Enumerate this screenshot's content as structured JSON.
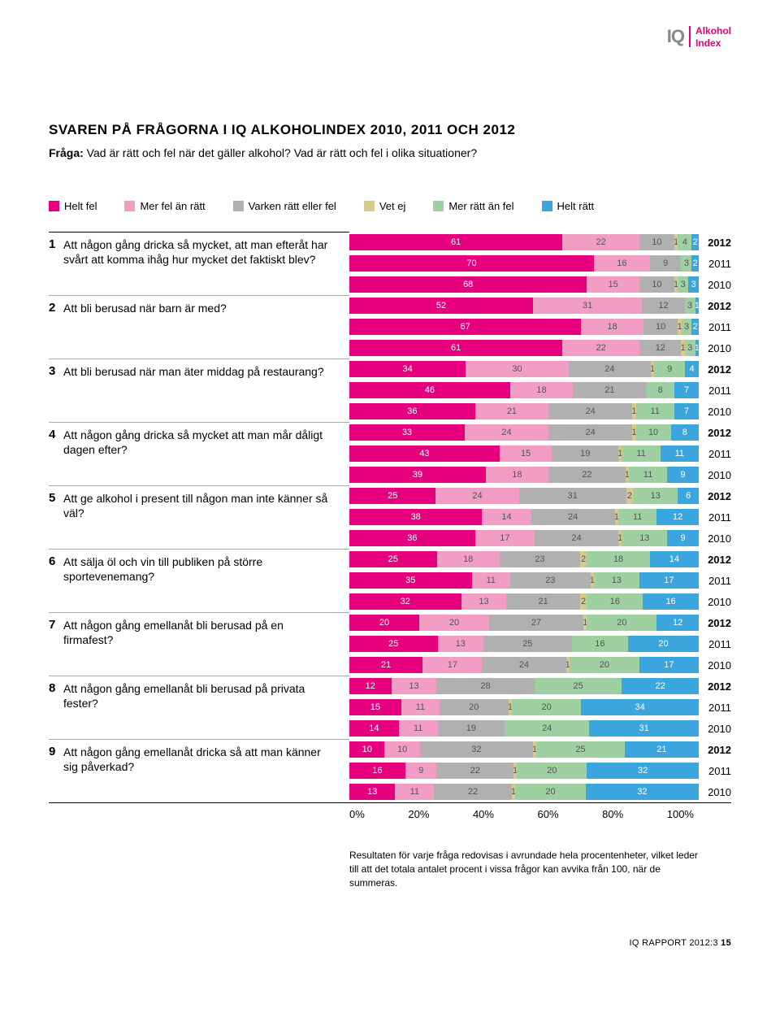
{
  "brand": {
    "iq": "IQ",
    "line1": "Alkohol",
    "line2": "Index",
    "accent": "#e6007e"
  },
  "title": "SVAREN PÅ FRÅGORNA I IQ ALKOHOLINDEX 2010, 2011 OCH 2012",
  "subtitle_bold": "Fråga:",
  "subtitle": " Vad är rätt och fel när det gäller alkohol? Vad är rätt och fel i olika situationer?",
  "legend": [
    {
      "label": "Helt fel",
      "color": "#e6007e"
    },
    {
      "label": "Mer fel än rätt",
      "color": "#f29ec4"
    },
    {
      "label": "Varken rätt eller fel",
      "color": "#b0b0b0"
    },
    {
      "label": "Vet ej",
      "color": "#d8c98f"
    },
    {
      "label": "Mer rätt än fel",
      "color": "#9ed0a1"
    },
    {
      "label": "Helt rätt",
      "color": "#3aa6dd"
    }
  ],
  "colors": [
    "#e6007e",
    "#f29ec4",
    "#b0b0b0",
    "#d8c98f",
    "#9ed0a1",
    "#3aa6dd"
  ],
  "darkTextFor": [
    "#f29ec4",
    "#b0b0b0",
    "#d8c98f",
    "#9ed0a1"
  ],
  "questions": [
    {
      "n": "1",
      "text": "Att någon gång dricka så mycket, att man efteråt har svårt att komma ihåg hur mycket det faktiskt blev?",
      "years": [
        {
          "y": "2012",
          "v": [
            61,
            22,
            10,
            1,
            4,
            2
          ]
        },
        {
          "y": "2011",
          "v": [
            70,
            16,
            9,
            0,
            3,
            2
          ]
        },
        {
          "y": "2010",
          "v": [
            68,
            15,
            10,
            1,
            3,
            3
          ]
        }
      ]
    },
    {
      "n": "2",
      "text": "Att bli berusad när barn är med?",
      "years": [
        {
          "y": "2012",
          "v": [
            52,
            31,
            12,
            0,
            3,
            1
          ]
        },
        {
          "y": "2011",
          "v": [
            67,
            18,
            10,
            1,
            3,
            2
          ]
        },
        {
          "y": "2010",
          "v": [
            61,
            22,
            12,
            1,
            3,
            1
          ]
        }
      ]
    },
    {
      "n": "3",
      "text": "Att bli berusad när man äter middag på restaurang?",
      "years": [
        {
          "y": "2012",
          "v": [
            34,
            30,
            24,
            1,
            9,
            4
          ]
        },
        {
          "y": "2011",
          "v": [
            46,
            18,
            21,
            0,
            8,
            7
          ]
        },
        {
          "y": "2010",
          "v": [
            36,
            21,
            24,
            1,
            11,
            7
          ]
        }
      ]
    },
    {
      "n": "4",
      "text": "Att någon gång dricka så mycket att man mår dåligt dagen efter?",
      "years": [
        {
          "y": "2012",
          "v": [
            33,
            24,
            24,
            1,
            10,
            8
          ]
        },
        {
          "y": "2011",
          "v": [
            43,
            15,
            19,
            1,
            11,
            11
          ]
        },
        {
          "y": "2010",
          "v": [
            39,
            18,
            22,
            1,
            11,
            9
          ]
        }
      ]
    },
    {
      "n": "5",
      "text": "Att ge alkohol i present till någon man inte känner så väl?",
      "years": [
        {
          "y": "2012",
          "v": [
            25,
            24,
            31,
            2,
            13,
            6
          ]
        },
        {
          "y": "2011",
          "v": [
            38,
            14,
            24,
            1,
            11,
            12
          ]
        },
        {
          "y": "2010",
          "v": [
            36,
            17,
            24,
            1,
            13,
            9
          ]
        }
      ]
    },
    {
      "n": "6",
      "text": "Att sälja öl och vin till publiken på större sportevenemang?",
      "years": [
        {
          "y": "2012",
          "v": [
            25,
            18,
            23,
            2,
            18,
            14
          ]
        },
        {
          "y": "2011",
          "v": [
            35,
            11,
            23,
            1,
            13,
            17
          ]
        },
        {
          "y": "2010",
          "v": [
            32,
            13,
            21,
            2,
            16,
            16
          ]
        }
      ]
    },
    {
      "n": "7",
      "text": "Att någon gång emellanåt bli berusad på en firmafest?",
      "years": [
        {
          "y": "2012",
          "v": [
            20,
            20,
            27,
            1,
            20,
            12
          ]
        },
        {
          "y": "2011",
          "v": [
            25,
            13,
            25,
            0,
            16,
            20
          ]
        },
        {
          "y": "2010",
          "v": [
            21,
            17,
            24,
            1,
            20,
            17
          ]
        }
      ]
    },
    {
      "n": "8",
      "text": "Att någon gång emellanåt bli berusad på privata fester?",
      "years": [
        {
          "y": "2012",
          "v": [
            12,
            13,
            28,
            0,
            25,
            22
          ]
        },
        {
          "y": "2011",
          "v": [
            15,
            11,
            20,
            1,
            20,
            34
          ]
        },
        {
          "y": "2010",
          "v": [
            14,
            11,
            19,
            0,
            24,
            31
          ]
        }
      ]
    },
    {
      "n": "9",
      "text": "Att någon gång emellanåt dricka så att man känner sig påverkad?",
      "years": [
        {
          "y": "2012",
          "v": [
            10,
            10,
            32,
            1,
            25,
            21
          ]
        },
        {
          "y": "2011",
          "v": [
            16,
            9,
            22,
            1,
            20,
            32
          ]
        },
        {
          "y": "2010",
          "v": [
            13,
            11,
            22,
            1,
            20,
            32
          ]
        }
      ]
    }
  ],
  "axis": [
    "0%",
    "20%",
    "40%",
    "60%",
    "80%",
    "100%"
  ],
  "footnote": "Resultaten för varje fråga redovisas i avrundade hela procentenheter, vilket leder till att det totala antalet procent i vissa frågor kan avvika från 100, när de summeras.",
  "footer_left": "IQ RAPPORT 2012:3",
  "footer_page": "15"
}
